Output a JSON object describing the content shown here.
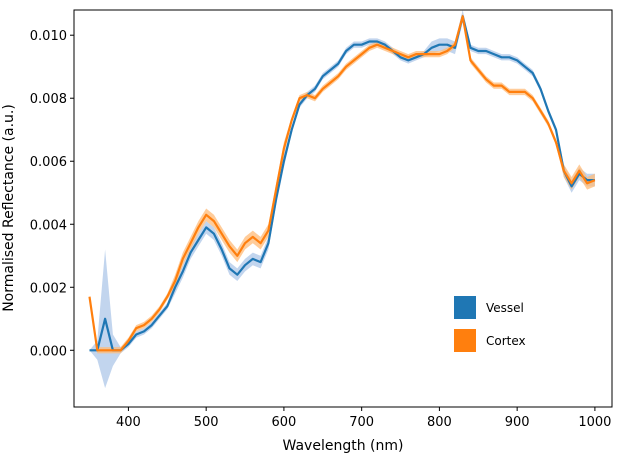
{
  "chart_data": {
    "type": "line",
    "title": "",
    "xlabel": "Wavelength (nm)",
    "ylabel": "Normalised Reflectance (a.u.)",
    "xlim": [
      330,
      1022
    ],
    "ylim": [
      -0.0018,
      0.0108
    ],
    "xticks": [
      400,
      500,
      600,
      700,
      800,
      900,
      1000
    ],
    "yticks": [
      0.0,
      0.002,
      0.004,
      0.006,
      0.008,
      0.01
    ],
    "ytick_labels": [
      "0.000",
      "0.002",
      "0.004",
      "0.006",
      "0.008",
      "0.010"
    ],
    "grid": false,
    "legend": {
      "position": "lower-right"
    },
    "series": [
      {
        "name": "Vessel",
        "color": "#1f77b4",
        "band_color": "#aec7e8",
        "x": [
          350,
          360,
          370,
          380,
          390,
          400,
          410,
          420,
          430,
          440,
          450,
          460,
          470,
          480,
          490,
          500,
          510,
          520,
          530,
          540,
          550,
          560,
          570,
          580,
          590,
          600,
          610,
          620,
          630,
          640,
          650,
          660,
          670,
          680,
          690,
          700,
          710,
          720,
          730,
          740,
          750,
          760,
          770,
          780,
          790,
          800,
          810,
          820,
          830,
          840,
          850,
          860,
          870,
          880,
          890,
          900,
          910,
          920,
          930,
          940,
          950,
          960,
          970,
          980,
          990,
          1000
        ],
        "values": [
          0.0,
          0.0,
          0.001,
          0.0,
          0.0,
          0.0002,
          0.0005,
          0.0006,
          0.0008,
          0.0011,
          0.0014,
          0.002,
          0.0025,
          0.0031,
          0.0035,
          0.0039,
          0.0037,
          0.0032,
          0.0026,
          0.0024,
          0.0027,
          0.0029,
          0.0028,
          0.0034,
          0.0048,
          0.006,
          0.007,
          0.0078,
          0.0081,
          0.0083,
          0.0087,
          0.0089,
          0.0091,
          0.0095,
          0.0097,
          0.0097,
          0.0098,
          0.0098,
          0.0097,
          0.0095,
          0.0093,
          0.0092,
          0.0093,
          0.0094,
          0.0096,
          0.0097,
          0.0097,
          0.0096,
          0.0106,
          0.0096,
          0.0095,
          0.0095,
          0.0094,
          0.0093,
          0.0093,
          0.0092,
          0.009,
          0.0088,
          0.0083,
          0.0076,
          0.007,
          0.0057,
          0.0052,
          0.0056,
          0.0054,
          0.0054
        ],
        "band_width": [
          0.0,
          0.0003,
          0.0022,
          0.0005,
          0.0001,
          0.0001,
          0.0001,
          0.0001,
          0.0001,
          0.0001,
          0.0001,
          0.0002,
          0.0002,
          0.0002,
          0.0002,
          0.0002,
          0.0002,
          0.0002,
          0.0002,
          0.0002,
          0.0002,
          0.0002,
          0.0002,
          0.0002,
          0.0002,
          0.0002,
          0.0001,
          0.0001,
          0.0001,
          0.0001,
          0.0001,
          0.0001,
          0.0001,
          0.0001,
          0.0001,
          0.0001,
          0.0001,
          0.0001,
          0.0001,
          0.0001,
          0.0001,
          0.0001,
          0.0001,
          0.0001,
          0.0002,
          0.0002,
          0.0002,
          0.0002,
          0.0002,
          0.0001,
          0.0001,
          0.0001,
          0.0001,
          0.0001,
          0.0001,
          0.0001,
          0.0001,
          0.0001,
          0.0001,
          0.0001,
          0.0001,
          0.0002,
          0.0002,
          0.0002,
          0.0002,
          0.0002
        ]
      },
      {
        "name": "Cortex",
        "color": "#ff7f0e",
        "band_color": "#ffbb78",
        "x": [
          350,
          360,
          370,
          380,
          390,
          400,
          410,
          420,
          430,
          440,
          450,
          460,
          470,
          480,
          490,
          500,
          510,
          520,
          530,
          540,
          550,
          560,
          570,
          580,
          590,
          600,
          610,
          620,
          630,
          640,
          650,
          660,
          670,
          680,
          690,
          700,
          710,
          720,
          730,
          740,
          750,
          760,
          770,
          780,
          790,
          800,
          810,
          820,
          830,
          840,
          850,
          860,
          870,
          880,
          890,
          900,
          910,
          920,
          930,
          940,
          950,
          960,
          970,
          980,
          990,
          1000
        ],
        "values": [
          0.0017,
          0.0,
          0.0,
          0.0,
          0.0,
          0.0003,
          0.0007,
          0.0008,
          0.001,
          0.0013,
          0.0017,
          0.0022,
          0.0029,
          0.0034,
          0.0039,
          0.0043,
          0.0041,
          0.0037,
          0.0033,
          0.003,
          0.0034,
          0.0036,
          0.0034,
          0.0038,
          0.0051,
          0.0064,
          0.0073,
          0.008,
          0.0081,
          0.008,
          0.0083,
          0.0085,
          0.0087,
          0.009,
          0.0092,
          0.0094,
          0.0096,
          0.0097,
          0.0096,
          0.0095,
          0.0094,
          0.0093,
          0.0094,
          0.0094,
          0.0094,
          0.0094,
          0.0095,
          0.0097,
          0.0106,
          0.0092,
          0.0089,
          0.0086,
          0.0084,
          0.0084,
          0.0082,
          0.0082,
          0.0082,
          0.008,
          0.0076,
          0.0072,
          0.0066,
          0.0057,
          0.0053,
          0.0057,
          0.0053,
          0.0054
        ],
        "band_width": [
          0.0,
          0.0001,
          0.0001,
          0.0001,
          0.0001,
          0.0001,
          0.0001,
          0.0001,
          0.0001,
          0.0001,
          0.0001,
          0.0002,
          0.0002,
          0.0002,
          0.0002,
          0.0002,
          0.0002,
          0.0002,
          0.0002,
          0.0002,
          0.0002,
          0.0002,
          0.0002,
          0.0002,
          0.0002,
          0.0002,
          0.0001,
          0.0001,
          0.0001,
          0.0001,
          0.0001,
          0.0001,
          0.0001,
          0.0001,
          0.0001,
          0.0001,
          0.0001,
          0.0001,
          0.0001,
          0.0001,
          0.0001,
          0.0001,
          0.0001,
          0.0001,
          0.0001,
          0.0001,
          0.0001,
          0.0001,
          0.0001,
          0.0001,
          0.0001,
          0.0001,
          0.0001,
          0.0001,
          0.0001,
          0.0001,
          0.0001,
          0.0001,
          0.0001,
          0.0001,
          0.0001,
          0.0002,
          0.0002,
          0.0002,
          0.0002,
          0.0002
        ]
      }
    ]
  }
}
